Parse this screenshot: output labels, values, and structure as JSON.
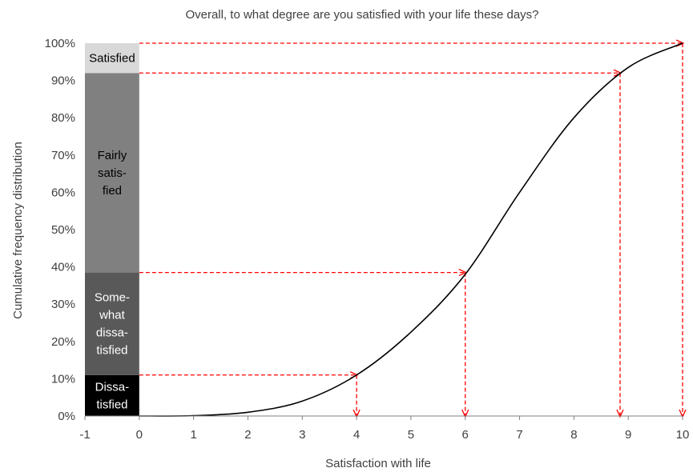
{
  "chart_data": {
    "type": "line",
    "title": "Overall, to what degree are you satisfied with your life these days?",
    "xlabel": "Satisfaction with life",
    "ylabel": "Cumulative frequency distribution",
    "xlim": [
      -1,
      10
    ],
    "ylim": [
      0,
      1
    ],
    "x_ticks": [
      "-1",
      "0",
      "1",
      "2",
      "3",
      "4",
      "5",
      "6",
      "7",
      "8",
      "9",
      "10"
    ],
    "y_ticks": [
      "0%",
      "10%",
      "20%",
      "30%",
      "40%",
      "50%",
      "60%",
      "70%",
      "80%",
      "90%",
      "100%"
    ],
    "grid": false,
    "series": [
      {
        "x": [
          0,
          1,
          2,
          3,
          4,
          5,
          6,
          7,
          8,
          9,
          10
        ],
        "y": [
          0.0,
          0.001,
          0.01,
          0.04,
          0.11,
          0.225,
          0.38,
          0.6,
          0.8,
          0.935,
          1.0
        ],
        "color": "#000000"
      }
    ],
    "stacked_bar": {
      "x_range": [
        -1,
        0
      ],
      "segments": [
        {
          "label": "Dissa-\ntisfied",
          "from": 0.0,
          "to": 0.11,
          "color": "#000000",
          "text_color": "#ffffff"
        },
        {
          "label": "Some-\nwhat\ndissa-\ntisfied",
          "from": 0.11,
          "to": 0.385,
          "color": "#595959",
          "text_color": "#ffffff"
        },
        {
          "label": "Fairly\nsatis-\nfied",
          "from": 0.385,
          "to": 0.92,
          "color": "#808080",
          "text_color": "#000000"
        },
        {
          "label": "Satisfied",
          "from": 0.92,
          "to": 1.0,
          "color": "#d9d9d9",
          "text_color": "#000000"
        }
      ]
    },
    "guides": [
      {
        "x": 4,
        "y": 0.11
      },
      {
        "x": 6,
        "y": 0.385
      },
      {
        "x": 8.85,
        "y": 0.92
      },
      {
        "x": 10,
        "y": 1.0
      }
    ],
    "guide_color": "#ff0000"
  }
}
